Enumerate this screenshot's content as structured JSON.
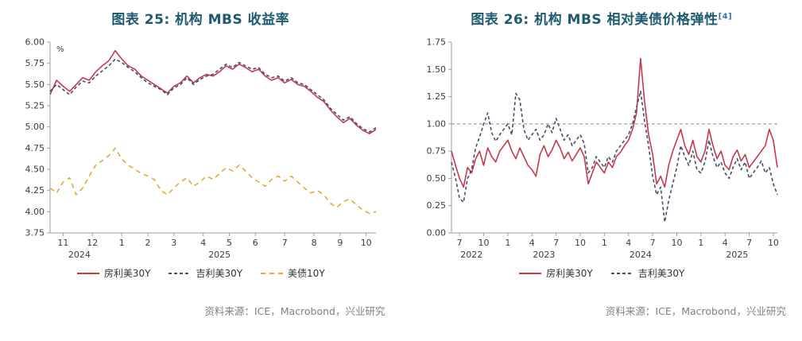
{
  "colors": {
    "title": "#1d5a70",
    "superscript": "#2e75b6",
    "axis": "#9aa0a6",
    "tick_text": "#3c3c3c",
    "source_text": "#808080",
    "refline": "#8a8a8a",
    "red": "#c43a4d",
    "navy": "#414f6b",
    "orange": "#eaa63a"
  },
  "chart_data": [
    {
      "type": "line",
      "title": "图表 25: 机构 MBS 收益率",
      "title_sup": "",
      "source": "资料来源：ICE，Macrobond，兴业研究",
      "ylabel": "%",
      "ylim": [
        3.75,
        6.0
      ],
      "yticks": [
        6.0,
        5.75,
        5.5,
        5.25,
        5.0,
        4.75,
        4.5,
        4.25,
        4.0,
        3.75
      ],
      "grid": false,
      "legend_position": "bottom",
      "xticks": [
        {
          "label": "11",
          "pos": 2
        },
        {
          "label": "12",
          "pos": 6.5
        },
        {
          "label": "1",
          "pos": 11
        },
        {
          "label": "2",
          "pos": 15
        },
        {
          "label": "3",
          "pos": 19
        },
        {
          "label": "4",
          "pos": 23.5
        },
        {
          "label": "5",
          "pos": 27.5
        },
        {
          "label": "6",
          "pos": 31.5
        },
        {
          "label": "7",
          "pos": 36
        },
        {
          "label": "8",
          "pos": 40.5
        },
        {
          "label": "9",
          "pos": 44.5
        },
        {
          "label": "10",
          "pos": 48.5
        }
      ],
      "year_labels": [
        {
          "label": "2024",
          "pos": 4.5
        },
        {
          "label": "2025",
          "pos": 26
        }
      ],
      "series": [
        {
          "name": "房利美30Y",
          "color": "#c43a4d",
          "dash": "",
          "values": [
            5.38,
            5.55,
            5.48,
            5.42,
            5.5,
            5.58,
            5.55,
            5.65,
            5.72,
            5.78,
            5.9,
            5.8,
            5.72,
            5.68,
            5.6,
            5.55,
            5.5,
            5.45,
            5.4,
            5.48,
            5.52,
            5.6,
            5.52,
            5.58,
            5.62,
            5.6,
            5.65,
            5.72,
            5.68,
            5.74,
            5.7,
            5.65,
            5.68,
            5.6,
            5.55,
            5.58,
            5.52,
            5.56,
            5.5,
            5.48,
            5.42,
            5.35,
            5.3,
            5.2,
            5.12,
            5.05,
            5.1,
            5.02,
            4.96,
            4.92,
            4.97
          ]
        },
        {
          "name": "吉利美30Y",
          "color": "#414f6b",
          "dash": "4,3",
          "values": [
            5.42,
            5.5,
            5.44,
            5.38,
            5.47,
            5.54,
            5.52,
            5.6,
            5.66,
            5.72,
            5.8,
            5.76,
            5.7,
            5.65,
            5.58,
            5.52,
            5.48,
            5.44,
            5.38,
            5.46,
            5.5,
            5.58,
            5.5,
            5.56,
            5.6,
            5.62,
            5.68,
            5.74,
            5.7,
            5.76,
            5.72,
            5.68,
            5.7,
            5.62,
            5.58,
            5.6,
            5.54,
            5.58,
            5.52,
            5.5,
            5.44,
            5.38,
            5.32,
            5.22,
            5.15,
            5.08,
            5.12,
            5.04,
            4.98,
            4.94,
            4.99
          ]
        },
        {
          "name": "美债10Y",
          "color": "#eaa63a",
          "dash": "6,5",
          "values": [
            4.28,
            4.22,
            4.35,
            4.4,
            4.2,
            4.28,
            4.42,
            4.55,
            4.6,
            4.66,
            4.75,
            4.62,
            4.55,
            4.5,
            4.45,
            4.42,
            4.38,
            4.25,
            4.2,
            4.28,
            4.35,
            4.4,
            4.3,
            4.35,
            4.42,
            4.38,
            4.45,
            4.52,
            4.48,
            4.55,
            4.48,
            4.4,
            4.35,
            4.3,
            4.38,
            4.42,
            4.36,
            4.42,
            4.35,
            4.28,
            4.22,
            4.25,
            4.2,
            4.1,
            4.05,
            4.12,
            4.15,
            4.08,
            4.02,
            3.98,
            4.0
          ]
        }
      ]
    },
    {
      "type": "line",
      "title": "图表 26: 机构 MBS 相对美债价格弹性",
      "title_sup": "[4]",
      "source": "资料来源：ICE，Macrobond，兴业研究",
      "ylabel": "",
      "ylim": [
        0,
        1.75
      ],
      "yticks": [
        1.75,
        1.5,
        1.25,
        1.0,
        0.75,
        0.5,
        0.25,
        0.0
      ],
      "refline": 1.0,
      "grid": false,
      "legend_position": "bottom",
      "xticks": [
        {
          "label": "7",
          "pos": 2
        },
        {
          "label": "10",
          "pos": 8
        },
        {
          "label": "1",
          "pos": 14
        },
        {
          "label": "4",
          "pos": 20
        },
        {
          "label": "7",
          "pos": 26
        },
        {
          "label": "10",
          "pos": 32
        },
        {
          "label": "1",
          "pos": 38
        },
        {
          "label": "4",
          "pos": 44
        },
        {
          "label": "7",
          "pos": 50
        },
        {
          "label": "10",
          "pos": 56
        },
        {
          "label": "1",
          "pos": 62
        },
        {
          "label": "4",
          "pos": 68
        },
        {
          "label": "7",
          "pos": 74
        },
        {
          "label": "10",
          "pos": 80
        }
      ],
      "year_labels": [
        {
          "label": "2022",
          "pos": 5
        },
        {
          "label": "2023",
          "pos": 23
        },
        {
          "label": "2024",
          "pos": 47
        },
        {
          "label": "2025",
          "pos": 71
        }
      ],
      "series": [
        {
          "name": "房利美30Y",
          "color": "#c43a4d",
          "dash": "",
          "values": [
            0.75,
            0.62,
            0.5,
            0.42,
            0.6,
            0.55,
            0.68,
            0.75,
            0.62,
            0.78,
            0.7,
            0.65,
            0.75,
            0.8,
            0.85,
            0.75,
            0.68,
            0.78,
            0.7,
            0.62,
            0.58,
            0.52,
            0.72,
            0.8,
            0.7,
            0.76,
            0.85,
            0.78,
            0.68,
            0.74,
            0.66,
            0.72,
            0.78,
            0.7,
            0.45,
            0.55,
            0.65,
            0.6,
            0.55,
            0.65,
            0.6,
            0.7,
            0.74,
            0.8,
            0.85,
            0.95,
            1.1,
            1.6,
            1.2,
            0.9,
            0.72,
            0.45,
            0.52,
            0.42,
            0.62,
            0.75,
            0.85,
            0.95,
            0.8,
            0.72,
            0.85,
            0.7,
            0.65,
            0.75,
            0.95,
            0.8,
            0.68,
            0.75,
            0.62,
            0.58,
            0.7,
            0.76,
            0.66,
            0.72,
            0.6,
            0.65,
            0.7,
            0.75,
            0.8,
            0.95,
            0.85,
            0.6
          ]
        },
        {
          "name": "吉利美30Y",
          "color": "#414f6b",
          "dash": "4,3",
          "values": [
            0.65,
            0.5,
            0.32,
            0.28,
            0.5,
            0.58,
            0.78,
            0.88,
            1.0,
            1.1,
            0.92,
            0.84,
            0.9,
            0.95,
            1.0,
            0.9,
            1.28,
            1.22,
            0.95,
            0.85,
            0.9,
            0.95,
            0.85,
            0.9,
            1.0,
            0.92,
            1.05,
            0.95,
            0.85,
            0.9,
            0.8,
            0.85,
            0.9,
            0.82,
            0.55,
            0.6,
            0.7,
            0.65,
            0.6,
            0.7,
            0.65,
            0.75,
            0.8,
            0.85,
            0.9,
            1.0,
            1.15,
            1.3,
            1.02,
            0.8,
            0.52,
            0.35,
            0.42,
            0.1,
            0.3,
            0.45,
            0.6,
            0.8,
            0.7,
            0.62,
            0.75,
            0.58,
            0.55,
            0.65,
            0.85,
            0.7,
            0.6,
            0.65,
            0.55,
            0.5,
            0.6,
            0.68,
            0.58,
            0.65,
            0.5,
            0.55,
            0.6,
            0.66,
            0.55,
            0.6,
            0.45,
            0.35
          ]
        }
      ]
    }
  ]
}
